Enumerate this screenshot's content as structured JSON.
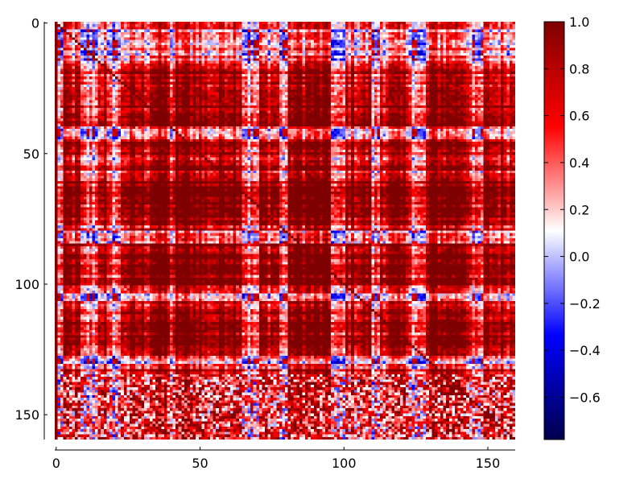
{
  "chart_data": {
    "type": "heatmap",
    "title": "",
    "xlabel": "",
    "ylabel": "",
    "rows": 160,
    "cols": 160,
    "xlim": [
      0,
      160
    ],
    "ylim": [
      160,
      0
    ],
    "x_ticks": [
      {
        "value": 0,
        "label": "0"
      },
      {
        "value": 50,
        "label": "50"
      },
      {
        "value": 100,
        "label": "100"
      },
      {
        "value": 150,
        "label": "150"
      }
    ],
    "y_ticks": [
      {
        "value": 0,
        "label": "0"
      },
      {
        "value": 50,
        "label": "50"
      },
      {
        "value": 100,
        "label": "100"
      },
      {
        "value": 150,
        "label": "150"
      }
    ],
    "colorbar": {
      "vmin": -0.78,
      "vmax": 1.0,
      "colormap": "seismic",
      "colors": [
        "#00004c",
        "#0000ff",
        "#ffffff",
        "#ff0000",
        "#7f0000"
      ],
      "ticks": [
        {
          "value": 1.0,
          "label": "1.0"
        },
        {
          "value": 0.8,
          "label": "0.8"
        },
        {
          "value": 0.6,
          "label": "0.6"
        },
        {
          "value": 0.4,
          "label": "0.4"
        },
        {
          "value": 0.2,
          "label": "0.2"
        },
        {
          "value": 0.0,
          "label": "0.0"
        },
        {
          "value": -0.2,
          "label": "−0.2"
        },
        {
          "value": -0.4,
          "label": "−0.4"
        },
        {
          "value": -0.6,
          "label": "−0.6"
        }
      ]
    },
    "structure": {
      "mean_value": 0.45,
      "row_band_blue_ranges": [
        [
          3,
          15
        ],
        [
          40,
          44
        ],
        [
          80,
          84
        ],
        [
          104,
          106
        ],
        [
          128,
          132
        ]
      ],
      "col_band_blue_ranges": [
        [
          1,
          2
        ],
        [
          9,
          14
        ],
        [
          18,
          22
        ],
        [
          40,
          41
        ],
        [
          65,
          70
        ],
        [
          78,
          80
        ],
        [
          96,
          100
        ],
        [
          110,
          112
        ],
        [
          124,
          128
        ],
        [
          145,
          148
        ]
      ],
      "strong_red_col_ranges": [
        [
          33,
          50
        ],
        [
          58,
          66
        ],
        [
          82,
          96
        ],
        [
          130,
          142
        ]
      ],
      "strong_red_row_ranges": [
        [
          30,
          40
        ],
        [
          60,
          75
        ],
        [
          85,
          100
        ],
        [
          112,
          125
        ]
      ],
      "noisy_rows_from": 135
    }
  }
}
